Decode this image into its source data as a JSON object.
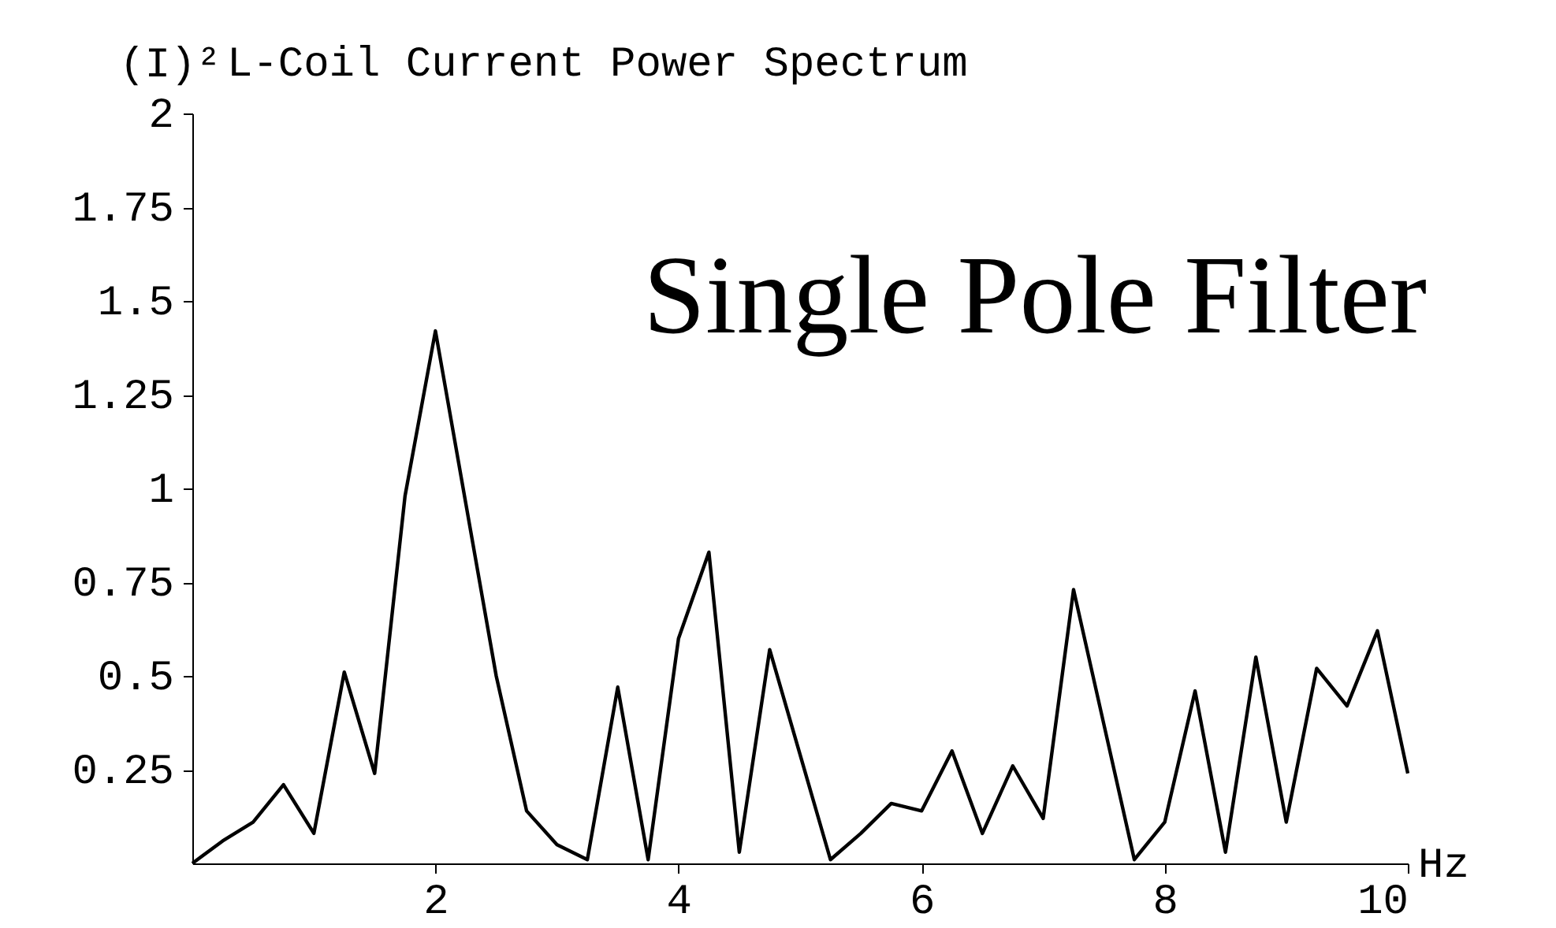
{
  "chart_data": {
    "type": "line",
    "title": "L-Coil Current Power Spectrum",
    "ylabel": "(I)²",
    "xlabel": "Hz",
    "annotations": [
      "Single Pole Filter"
    ],
    "x": [
      0,
      0.25,
      0.5,
      0.75,
      1,
      1.25,
      1.5,
      1.75,
      2,
      2.25,
      2.5,
      2.75,
      3,
      3.25,
      3.5,
      3.75,
      4,
      4.25,
      4.5,
      4.75,
      5,
      5.25,
      5.5,
      5.75,
      6,
      6.25,
      6.5,
      6.75,
      7,
      7.25,
      7.5,
      7.75,
      8,
      8.25,
      8.5,
      8.75,
      9,
      9.25,
      9.5,
      9.75,
      10
    ],
    "series": [
      {
        "color": "#000000",
        "values": [
          0,
          0.06,
          0.11,
          0.21,
          0.08,
          0.51,
          0.24,
          0.98,
          1.42,
          0.96,
          0.5,
          0.14,
          0.05,
          0.01,
          0.47,
          0.01,
          0.6,
          0.83,
          0.03,
          0.57,
          0.29,
          0.01,
          0.08,
          0.16,
          0.14,
          0.3,
          0.08,
          0.26,
          0.12,
          0.73,
          0.37,
          0.01,
          0.11,
          0.46,
          0.03,
          0.55,
          0.11,
          0.52,
          0.42,
          0.62,
          0.24
        ]
      }
    ],
    "xlim": [
      0,
      10
    ],
    "xticks": [
      2,
      4,
      6,
      8,
      10
    ],
    "ylim": [
      0,
      2
    ],
    "yticks": [
      0.25,
      0.5,
      0.75,
      1,
      1.25,
      1.5,
      1.75,
      2
    ],
    "grid": false,
    "marker": "none",
    "line_style": "solid"
  }
}
